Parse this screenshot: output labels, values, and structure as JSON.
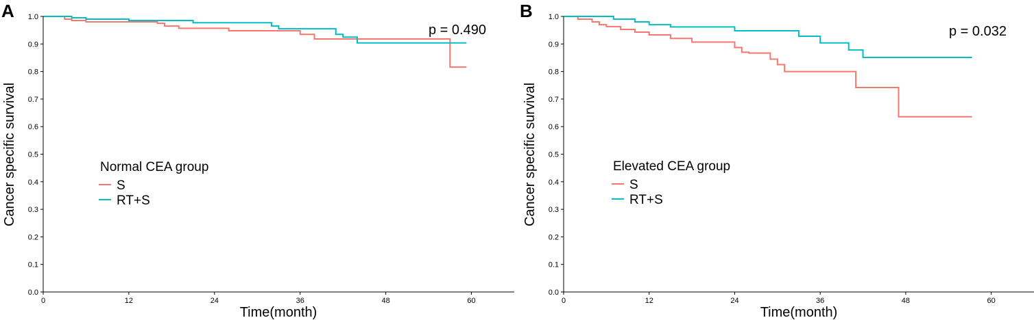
{
  "figure": {
    "panels": [
      {
        "letter": "A",
        "legend_title": "Normal CEA group",
        "pvalue": "p = 0.490"
      },
      {
        "letter": "B",
        "legend_title": "Elevated CEA group",
        "pvalue": "p = 0.032"
      }
    ]
  },
  "chart_data": [
    {
      "type": "line",
      "step": true,
      "title": "A",
      "xlabel": "Time(month)",
      "ylabel": "Cancer specific survival",
      "xlim": [
        0,
        66
      ],
      "ylim": [
        0,
        1
      ],
      "xticks": [
        0,
        12,
        24,
        36,
        48,
        60
      ],
      "yticks": [
        0.0,
        0.1,
        0.2,
        0.3,
        0.4,
        0.5,
        0.6,
        0.7,
        0.8,
        0.9,
        1.0
      ],
      "legend": {
        "title": "Normal CEA group",
        "position": "center-left"
      },
      "annotation": "p = 0.490",
      "series": [
        {
          "name": "S",
          "color": "#F8766D",
          "x": [
            0,
            3,
            4,
            6,
            16,
            17,
            19,
            26,
            36,
            38,
            57,
            57,
            59.3
          ],
          "y": [
            1.0,
            0.99,
            0.985,
            0.98,
            0.975,
            0.965,
            0.957,
            0.948,
            0.935,
            0.918,
            0.918,
            0.816,
            0.816
          ]
        },
        {
          "name": "RT+S",
          "color": "#00BFC4",
          "x": [
            0,
            4,
            6,
            12,
            21,
            32,
            33,
            41,
            42,
            44,
            59.3
          ],
          "y": [
            1.0,
            0.995,
            0.99,
            0.985,
            0.977,
            0.965,
            0.955,
            0.935,
            0.925,
            0.904,
            0.904
          ]
        }
      ]
    },
    {
      "type": "line",
      "step": true,
      "title": "B",
      "xlabel": "Time(month)",
      "ylabel": "Cancer specific survival",
      "xlim": [
        0,
        66
      ],
      "ylim": [
        0,
        1
      ],
      "xticks": [
        0,
        12,
        24,
        36,
        48,
        60
      ],
      "yticks": [
        0.0,
        0.1,
        0.2,
        0.3,
        0.4,
        0.5,
        0.6,
        0.7,
        0.8,
        0.9,
        1.0
      ],
      "legend": {
        "title": "Elevated CEA group",
        "position": "center-left"
      },
      "annotation": "p = 0.032",
      "series": [
        {
          "name": "S",
          "color": "#F8766D",
          "x": [
            0,
            2,
            4,
            5,
            6,
            8,
            10,
            12,
            15,
            18,
            24,
            25,
            26,
            29,
            30,
            31,
            33,
            41,
            47,
            57.3
          ],
          "y": [
            1.0,
            0.99,
            0.98,
            0.97,
            0.963,
            0.953,
            0.943,
            0.933,
            0.92,
            0.907,
            0.887,
            0.87,
            0.867,
            0.845,
            0.825,
            0.8,
            0.8,
            0.742,
            0.636,
            0.636
          ]
        },
        {
          "name": "RT+S",
          "color": "#00BFC4",
          "x": [
            0,
            7,
            10,
            12,
            15,
            24,
            33,
            36,
            40,
            42,
            57.3
          ],
          "y": [
            1.0,
            0.99,
            0.98,
            0.97,
            0.962,
            0.948,
            0.928,
            0.904,
            0.878,
            0.851,
            0.851
          ]
        }
      ]
    }
  ]
}
